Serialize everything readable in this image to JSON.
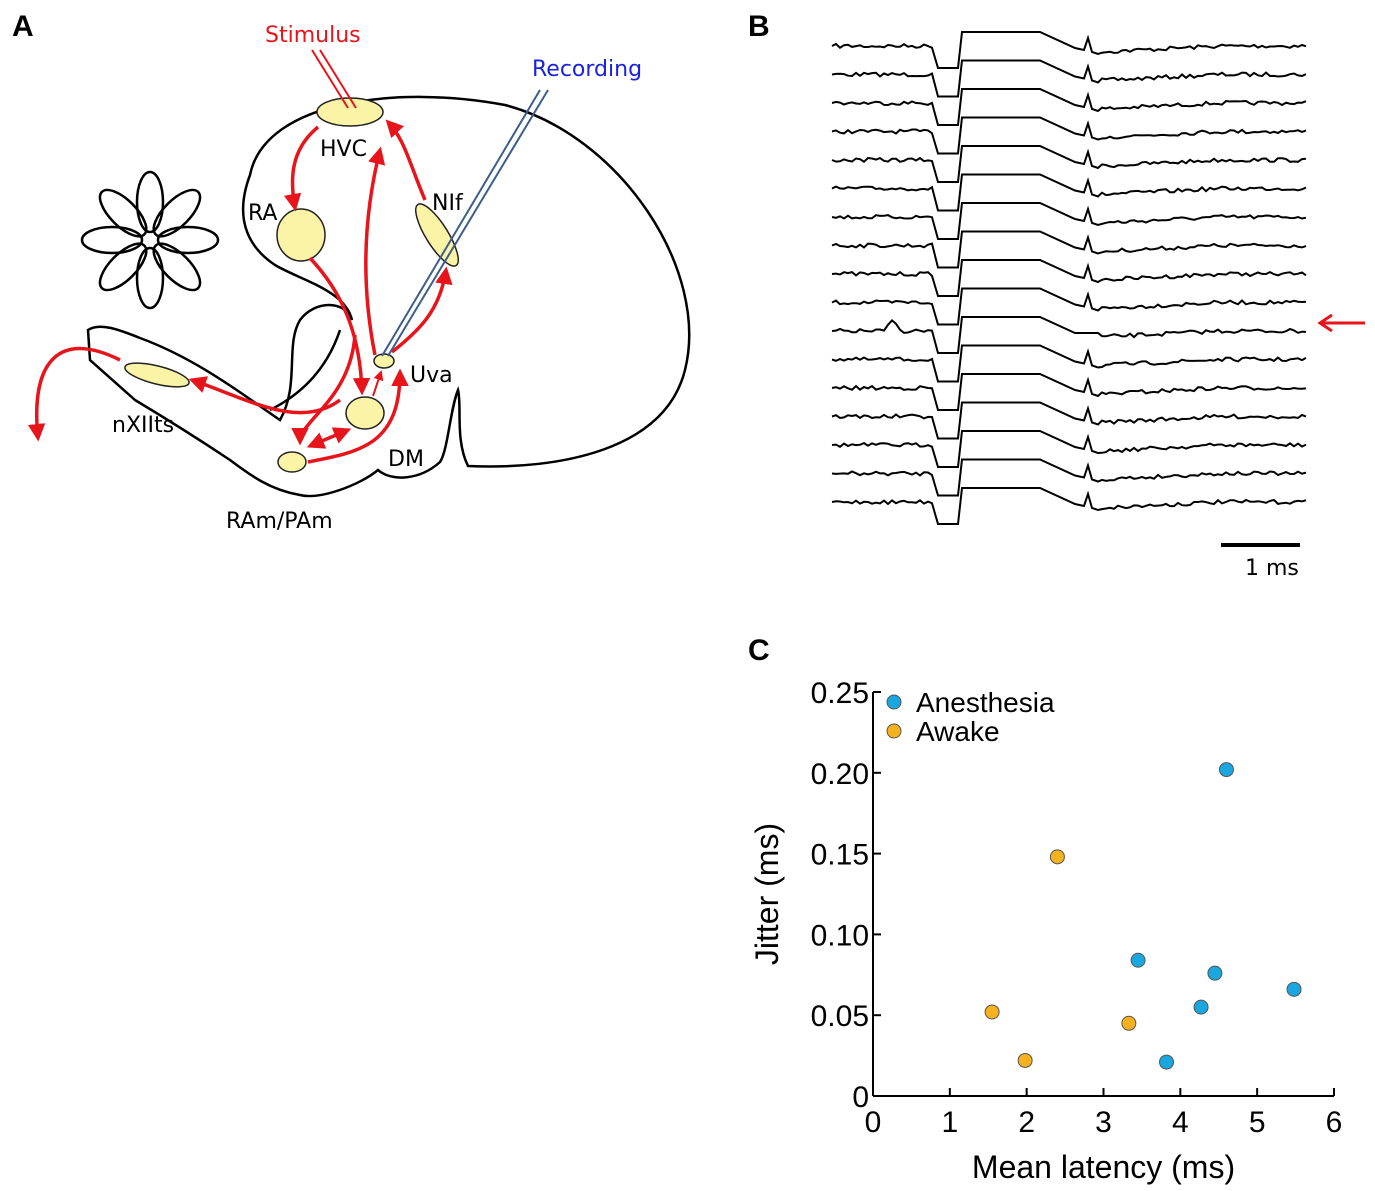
{
  "panel_labels": [
    "A",
    "B",
    "C"
  ],
  "diagram": {
    "labels": [
      "Stimulus",
      "Recording",
      "HVC",
      "RA",
      "NIf",
      "Uva",
      "nXIIts",
      "DM",
      "RAm/PAm"
    ]
  },
  "traces": {
    "scale_bar": "1 ms"
  },
  "chart_data": {
    "type": "scatter",
    "xlabel": "Mean latency (ms)",
    "ylabel": "Jitter (ms)",
    "xlim": [
      0,
      6
    ],
    "ylim": [
      0,
      0.25
    ],
    "xticks": [
      0,
      1,
      2,
      3,
      4,
      5,
      6
    ],
    "yticks": [
      0,
      0.05,
      {
        "value": 0.1,
        "label": "0.10"
      },
      0.15,
      {
        "value": 0.2,
        "label": "0.20"
      },
      0.25
    ],
    "legend": "upper-left",
    "series": [
      {
        "name": "Anesthesia",
        "color": "#1aa7e0",
        "x": [
          4.6,
          3.45,
          4.45,
          4.27,
          5.48,
          3.82
        ],
        "values": [
          0.202,
          0.084,
          0.076,
          0.055,
          0.066,
          0.021
        ]
      },
      {
        "name": "Awake",
        "color": "#f5b21e",
        "x": [
          2.4,
          1.55,
          1.98,
          3.33
        ],
        "values": [
          0.148,
          0.052,
          0.022,
          0.045
        ]
      }
    ]
  }
}
